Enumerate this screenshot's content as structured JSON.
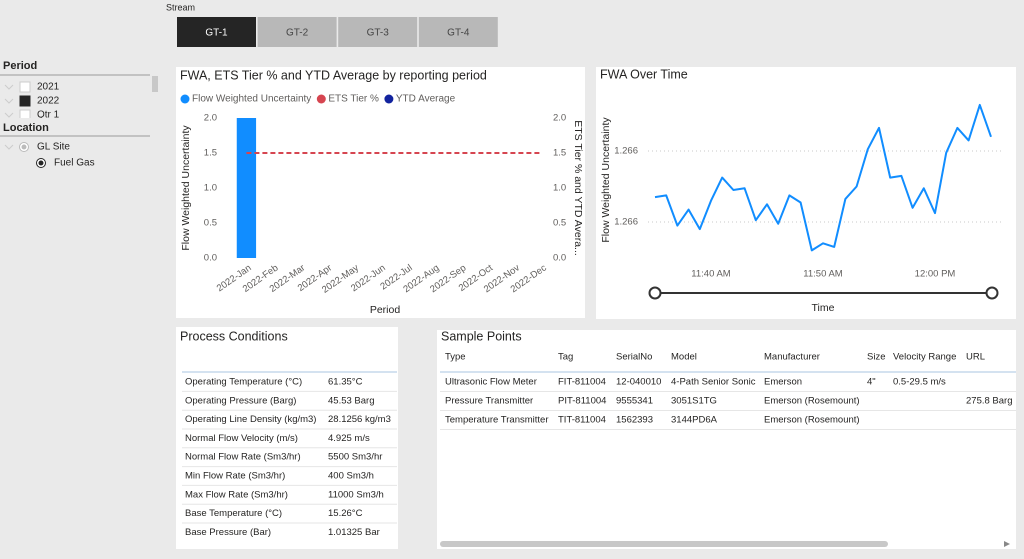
{
  "stream": {
    "label": "Stream",
    "tabs": [
      "GT-1",
      "GT-2",
      "GT-3",
      "GT-4"
    ],
    "selected": "GT-1"
  },
  "period_filter": {
    "title": "Period",
    "items": [
      "2021",
      "2022",
      "Qtr 1"
    ],
    "selected": "2022"
  },
  "location_filter": {
    "title": "Location",
    "items": [
      "GL Site",
      "Fuel Gas"
    ],
    "selected": "Fuel Gas"
  },
  "chart_data": [
    {
      "type": "bar",
      "title": "FWA, ETS Tier % and YTD Average by reporting period",
      "x_label": "Period",
      "y_label": "Flow Weighted Uncertainty",
      "y2_label": "ETS Tier % and YTD Avera...",
      "legend": "top-left",
      "categories": [
        "2022-Jan",
        "2022-Feb",
        "2022-Mar",
        "2022-Apr",
        "2022-May",
        "2022-Jun",
        "2022-Jul",
        "2022-Aug",
        "2022-Sep",
        "2022-Oct",
        "2022-Nov",
        "2022-Dec"
      ],
      "series": [
        {
          "name": "Flow Weighted Uncertainty",
          "color": "#118dff",
          "type": "bar",
          "values": [
            2.0,
            null,
            null,
            null,
            null,
            null,
            null,
            null,
            null,
            null,
            null,
            null
          ]
        },
        {
          "name": "ETS Tier %",
          "color": "#d64550",
          "type": "line",
          "dashed": true,
          "axis": "y2",
          "values": [
            1.5,
            1.5,
            1.5,
            1.5,
            1.5,
            1.5,
            1.5,
            1.5,
            1.5,
            1.5,
            1.5,
            1.5
          ]
        },
        {
          "name": "YTD Average",
          "color": "#12239e",
          "type": "line",
          "axis": "y2",
          "values": [
            null,
            null,
            null,
            null,
            null,
            null,
            null,
            null,
            null,
            null,
            null,
            null
          ]
        }
      ],
      "ylim": [
        0,
        2
      ],
      "yticks": [
        {
          "value": 0,
          "label": "0.0"
        },
        {
          "value": 0.5,
          "label": "0.5"
        },
        {
          "value": 1,
          "label": "1.0"
        },
        {
          "value": 1.5,
          "label": "1.5"
        },
        {
          "value": 2,
          "label": "2.0"
        }
      ],
      "y2lim": [
        0,
        2
      ],
      "y2ticks": [
        {
          "value": 0,
          "label": "0.0"
        },
        {
          "value": 0.5,
          "label": "0.5"
        },
        {
          "value": 1,
          "label": "1.0"
        },
        {
          "value": 1.5,
          "label": "1.5"
        },
        {
          "value": 2,
          "label": "2.0"
        }
      ],
      "grid": false
    },
    {
      "type": "line",
      "title": "FWA Over Time",
      "x_label": "Time",
      "y_label": "Flow Weighted Uncertainty",
      "color": "#118dff",
      "x": [
        "11:35 AM",
        "11:36 AM",
        "11:37 AM",
        "11:38 AM",
        "11:39 AM",
        "11:40 AM",
        "11:41 AM",
        "11:42 AM",
        "11:43 AM",
        "11:44 AM",
        "11:45 AM",
        "11:46 AM",
        "11:47 AM",
        "11:48 AM",
        "11:49 AM",
        "11:50 AM",
        "11:51 AM",
        "11:52 AM",
        "11:53 AM",
        "11:54 AM",
        "11:55 AM",
        "11:56 AM",
        "11:57 AM",
        "11:58 AM",
        "11:59 AM",
        "12:00 PM",
        "12:01 PM",
        "12:02 PM",
        "12:03 PM",
        "12:04 PM",
        "12:05 PM"
      ],
      "values": [
        1.26594,
        1.26595,
        1.26578,
        1.26587,
        1.26576,
        1.26592,
        1.26605,
        1.26598,
        1.26599,
        1.26581,
        1.2659,
        1.26579,
        1.26595,
        1.26591,
        1.26564,
        1.26568,
        1.26566,
        1.26593,
        1.266,
        1.26621,
        1.26633,
        1.26605,
        1.26606,
        1.26588,
        1.26599,
        1.26585,
        1.26619,
        1.26633,
        1.26626,
        1.26646,
        1.26628
      ],
      "xlim": [
        "11:35 AM",
        "12:05 PM"
      ],
      "xticks": [
        "11:40 AM",
        "11:50 AM",
        "12:00 PM"
      ],
      "ylim": [
        1.2656,
        1.2665
      ],
      "yticks": [
        {
          "value": 1.2658,
          "label": "1.266"
        },
        {
          "value": 1.2662,
          "label": "1.266"
        }
      ],
      "grid": true
    }
  ],
  "process_conditions": {
    "title": "Process Conditions",
    "rows": [
      [
        "Operating Temperature (°C)",
        "61.35°C"
      ],
      [
        "Operating Pressure (Barg)",
        "45.53 Barg"
      ],
      [
        "Operating Line Density (kg/m3)",
        "28.1256 kg/m3"
      ],
      [
        "Normal Flow Velocity (m/s)",
        "4.925 m/s"
      ],
      [
        "Normal Flow Rate (Sm3/hr)",
        "5500 Sm3/hr"
      ],
      [
        "Min Flow Rate (Sm3/hr)",
        "400 Sm3/h"
      ],
      [
        "Max Flow Rate (Sm3/hr)",
        "11000 Sm3/h"
      ],
      [
        "Base Temperature (°C)",
        "15.26°C"
      ],
      [
        "Base Pressure (Bar)",
        "1.01325 Bar"
      ]
    ]
  },
  "sample_points": {
    "title": "Sample Points",
    "columns": [
      "Type",
      "Tag",
      "SerialNo",
      "Model",
      "Manufacturer",
      "Size",
      "Velocity Range",
      "URL"
    ],
    "rows": [
      [
        "Ultrasonic Flow Meter",
        "FIT-811004",
        "12-040010",
        "4-Path Senior Sonic",
        "Emerson",
        "4\"",
        "0.5-29.5 m/s",
        null
      ],
      [
        "Pressure Transmitter",
        "PIT-811004",
        "9555341",
        "3051S1TG",
        "Emerson (Rosemount)",
        null,
        null,
        "275.8 Barg"
      ],
      [
        "Temperature Transmitter",
        "TIT-811004",
        "1562393",
        "3144PD6A",
        "Emerson (Rosemount)",
        null,
        null,
        null
      ]
    ]
  }
}
